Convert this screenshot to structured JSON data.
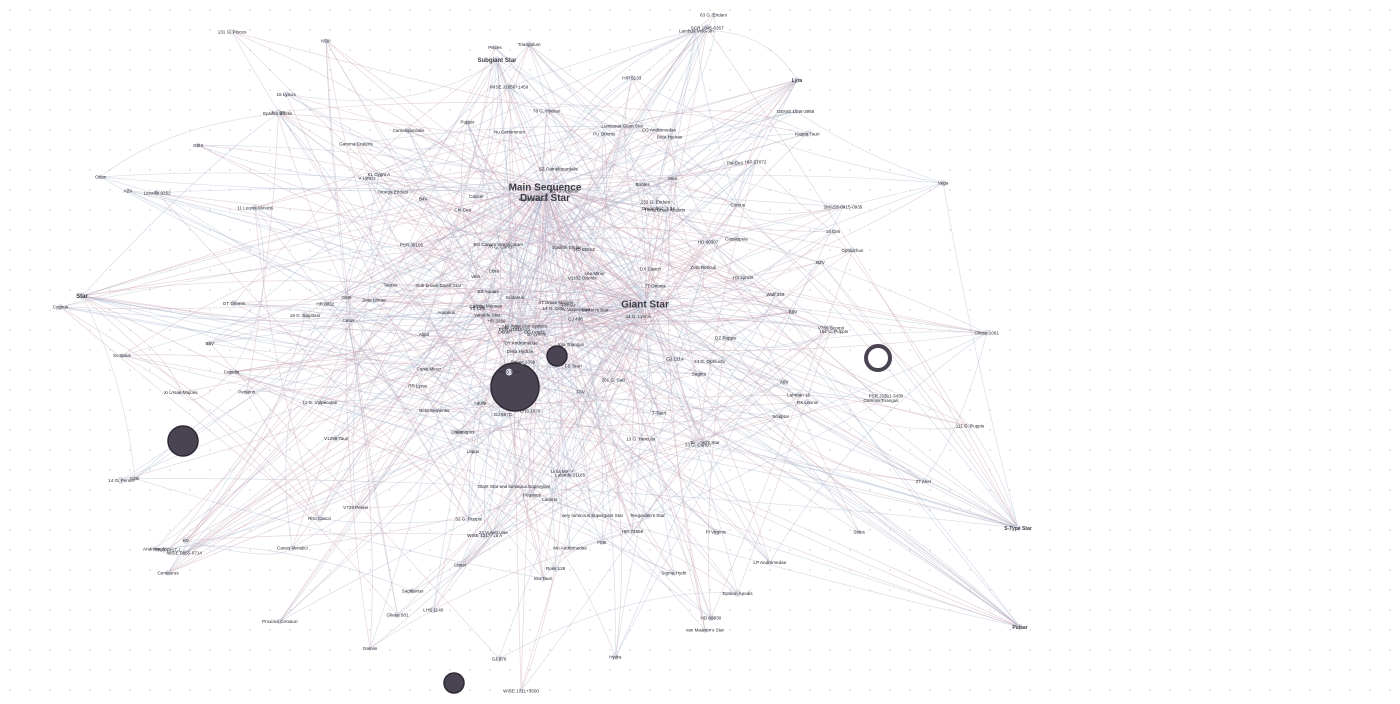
{
  "graph": {
    "colors": {
      "background": "#ffffff",
      "edge_red": "#c9a3b4",
      "edge_blue": "#a9b6cf",
      "node": "#dcdce6",
      "label": "#2b2b33",
      "bubble_dark": "#4a4452"
    },
    "hubs": [
      {
        "label": "Main Sequence",
        "label2": "Dwarf Star"
      },
      {
        "label": "Giant Star"
      },
      {
        "label": "Star"
      },
      {
        "label": "Subgiant Star"
      },
      {
        "label": "Lyra"
      },
      {
        "label": "Pulsar"
      },
      {
        "label": "S-Type Star"
      }
    ],
    "nodes": [
      "Multiple Star System",
      "Algol",
      "Aquila",
      "Triangulum",
      "Ophiuchus",
      "Ursa Major",
      "Canes Venatici",
      "Cassiopeia",
      "Andromeda",
      "Pisces",
      "Cancer",
      "Puppis",
      "Cetus",
      "Perseus",
      "Hydra",
      "Aquarius",
      "Taurus",
      "Auriga",
      "Pegasus",
      "Sagittarius",
      "Scorpius",
      "Gemini",
      "Orion",
      "Draco",
      "Cygnus",
      "Carina",
      "Vela",
      "Leo Minor",
      "Libra",
      "Lepus",
      "Canopus",
      "Mira",
      "Eridanus",
      "Capella",
      "Sirius",
      "Canis Minor",
      "Centaurus",
      "Camelopardalis",
      "Sagitta",
      "Vega",
      "Deneb",
      "Lacerta",
      "Corvus",
      "Crater",
      "Fornax",
      "Sculptor",
      "Boötes",
      "T-Tauri",
      "Variable Star",
      "Luminous Giant Star",
      "very luminous Supergiant Star",
      "Sub-brown Dwarf Star",
      "Giant Star and luminous Supergiant",
      "A0V",
      "B2V",
      "B4V",
      "B6V",
      "B8V",
      "K0",
      "K5III",
      "K3III",
      "F6V",
      "F0III",
      "G8III",
      "G0III",
      "A2V",
      "WISE 1217+16 A",
      "WISE 1711+3500",
      "PSR B1919+21",
      "PSR J0108",
      "PSR J1311-3430",
      "47 Ursae Majoris",
      "61 Cygni A",
      "Epsilon Eridani",
      "Tau Ceti",
      "Gliese 581",
      "Kapteyn's Star",
      "Barnard's Star",
      "Wolf 359",
      "Lalande 21185",
      "Ross 128",
      "Luyten's Star",
      "Teegarden's Star",
      "Groombridge 34",
      "Struve 2398",
      "Lacaille 9352",
      "van Maanen's Star",
      "YZ Ceti",
      "Gliese 1061",
      "DX Cancri",
      "EZ Aquarii",
      "14 G. Persei",
      "11 Leonis Minoris",
      "14 G. Ceti",
      "27 Ariel",
      "18 Lyncis",
      "15 Lyncis",
      "22 Vulpeculae",
      "32 G. Puppis",
      "111 G. Puppis",
      "24 G. Ophiuchi",
      "44 G. Lyncis",
      "13 G. Herculis",
      "63 G. Eridani",
      "77 Orionis",
      "111 G. Aquilae",
      "19 G. Sagittarii",
      "33 G. Cancri",
      "76 G. Cancri",
      "131 G. Pisces",
      "154 G. Puppis",
      "201 G. Ceti",
      "233 G. Eridani",
      "11 G. Vulpeculae",
      "14 Ceti",
      "78 G. Hydrae",
      "Eta Tauri",
      "Delta Hydrae",
      "Gamma Trianguli",
      "Beta Serpentis",
      "Epsilon Boötis",
      "Zeta Librae",
      "Psi Ceti",
      "Iota Trianguli",
      "Omega Eridani",
      "Nu Geminorum",
      "Mu Andromedae",
      "Epsilon Apodis",
      "Chi Ceti",
      "Beta Hydrae",
      "Pi Virginis",
      "Gamma Crateris",
      "Lambda Velorum",
      "Theta Ursae Majoris",
      "Rho Cancri",
      "Sigma Hydri",
      "Kappa Tauri",
      "Xi Ursae Majoris",
      "Alpha Mensae",
      "Zeta Reticuli",
      "HIP 5133",
      "HIP 72659",
      "HIP 27072",
      "HR 3259",
      "HR 8832",
      "HD 40307",
      "HD 69830",
      "HD 85512",
      "GJ 1214",
      "GJ 436",
      "GJ 667C",
      "GJ 876",
      "LHS 1140",
      "LHS 1678",
      "TRAPPIST-1",
      "Proxima Centauri",
      "V1182 Orionis",
      "V819 Tauri",
      "V Vulpeculae",
      "V Lyncis",
      "V739 Persei",
      "V760 Scorpii",
      "V1298 Tauri",
      "RX Leonis",
      "RR Lyrae",
      "RS Canum Venaticorum",
      "CG Andromedae",
      "CC Lyncis",
      "DY Andromedae",
      "FS Tauri",
      "HS Lyncis",
      "GT Orionis",
      "LP Andromedae",
      "PU Orionis",
      "QZ Puppis",
      "SZ Camelopardalis",
      "WISE J2056+1459",
      "WISE 0855-0714",
      "2MASS 0415-0935",
      "Luhman 16",
      "DENIS 1048-3956",
      "SCR 1845-6357"
    ]
  }
}
